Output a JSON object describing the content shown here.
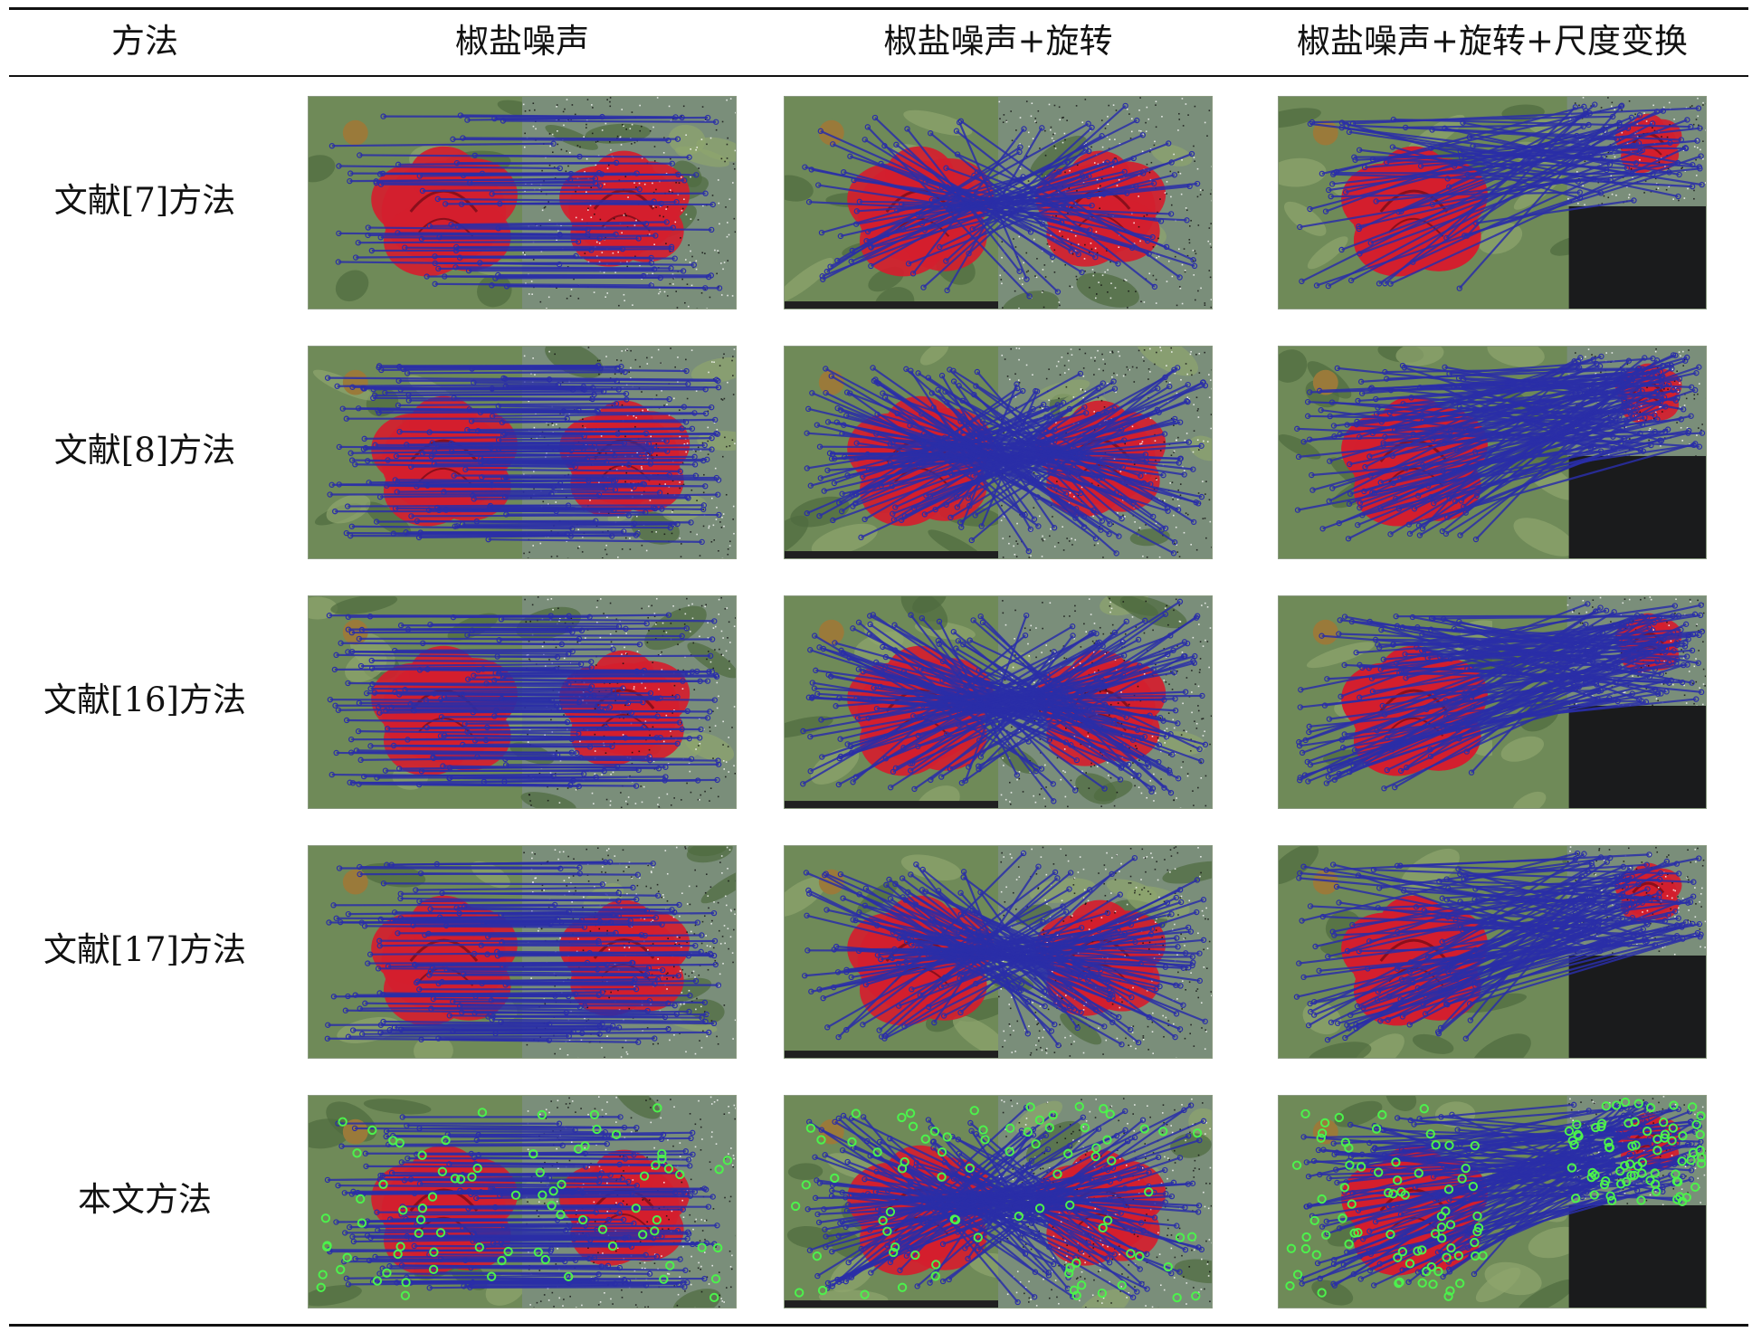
{
  "table": {
    "headers": [
      "方法",
      "椒盐噪声",
      "椒盐噪声+旋转",
      "椒盐噪声+旋转+尺度变换"
    ],
    "rows": [
      {
        "method": "文献[7]方法",
        "density": 0.35
      },
      {
        "method": "文献[8]方法",
        "density": 1.0
      },
      {
        "method": "文献[16]方法",
        "density": 0.85
      },
      {
        "method": "文献[17]方法",
        "density": 0.8
      },
      {
        "method": "本文方法",
        "density": 0.9
      }
    ]
  },
  "colors": {
    "rule": "#111111",
    "match_line": "#2a2ea8",
    "keypoint_outlier": "#4cf24c",
    "rose": "#d41e2e",
    "foliage": "#6f8a58",
    "noise_panel_bg": "#7a8e7a",
    "scaled_blank": "#1a1b1c"
  }
}
